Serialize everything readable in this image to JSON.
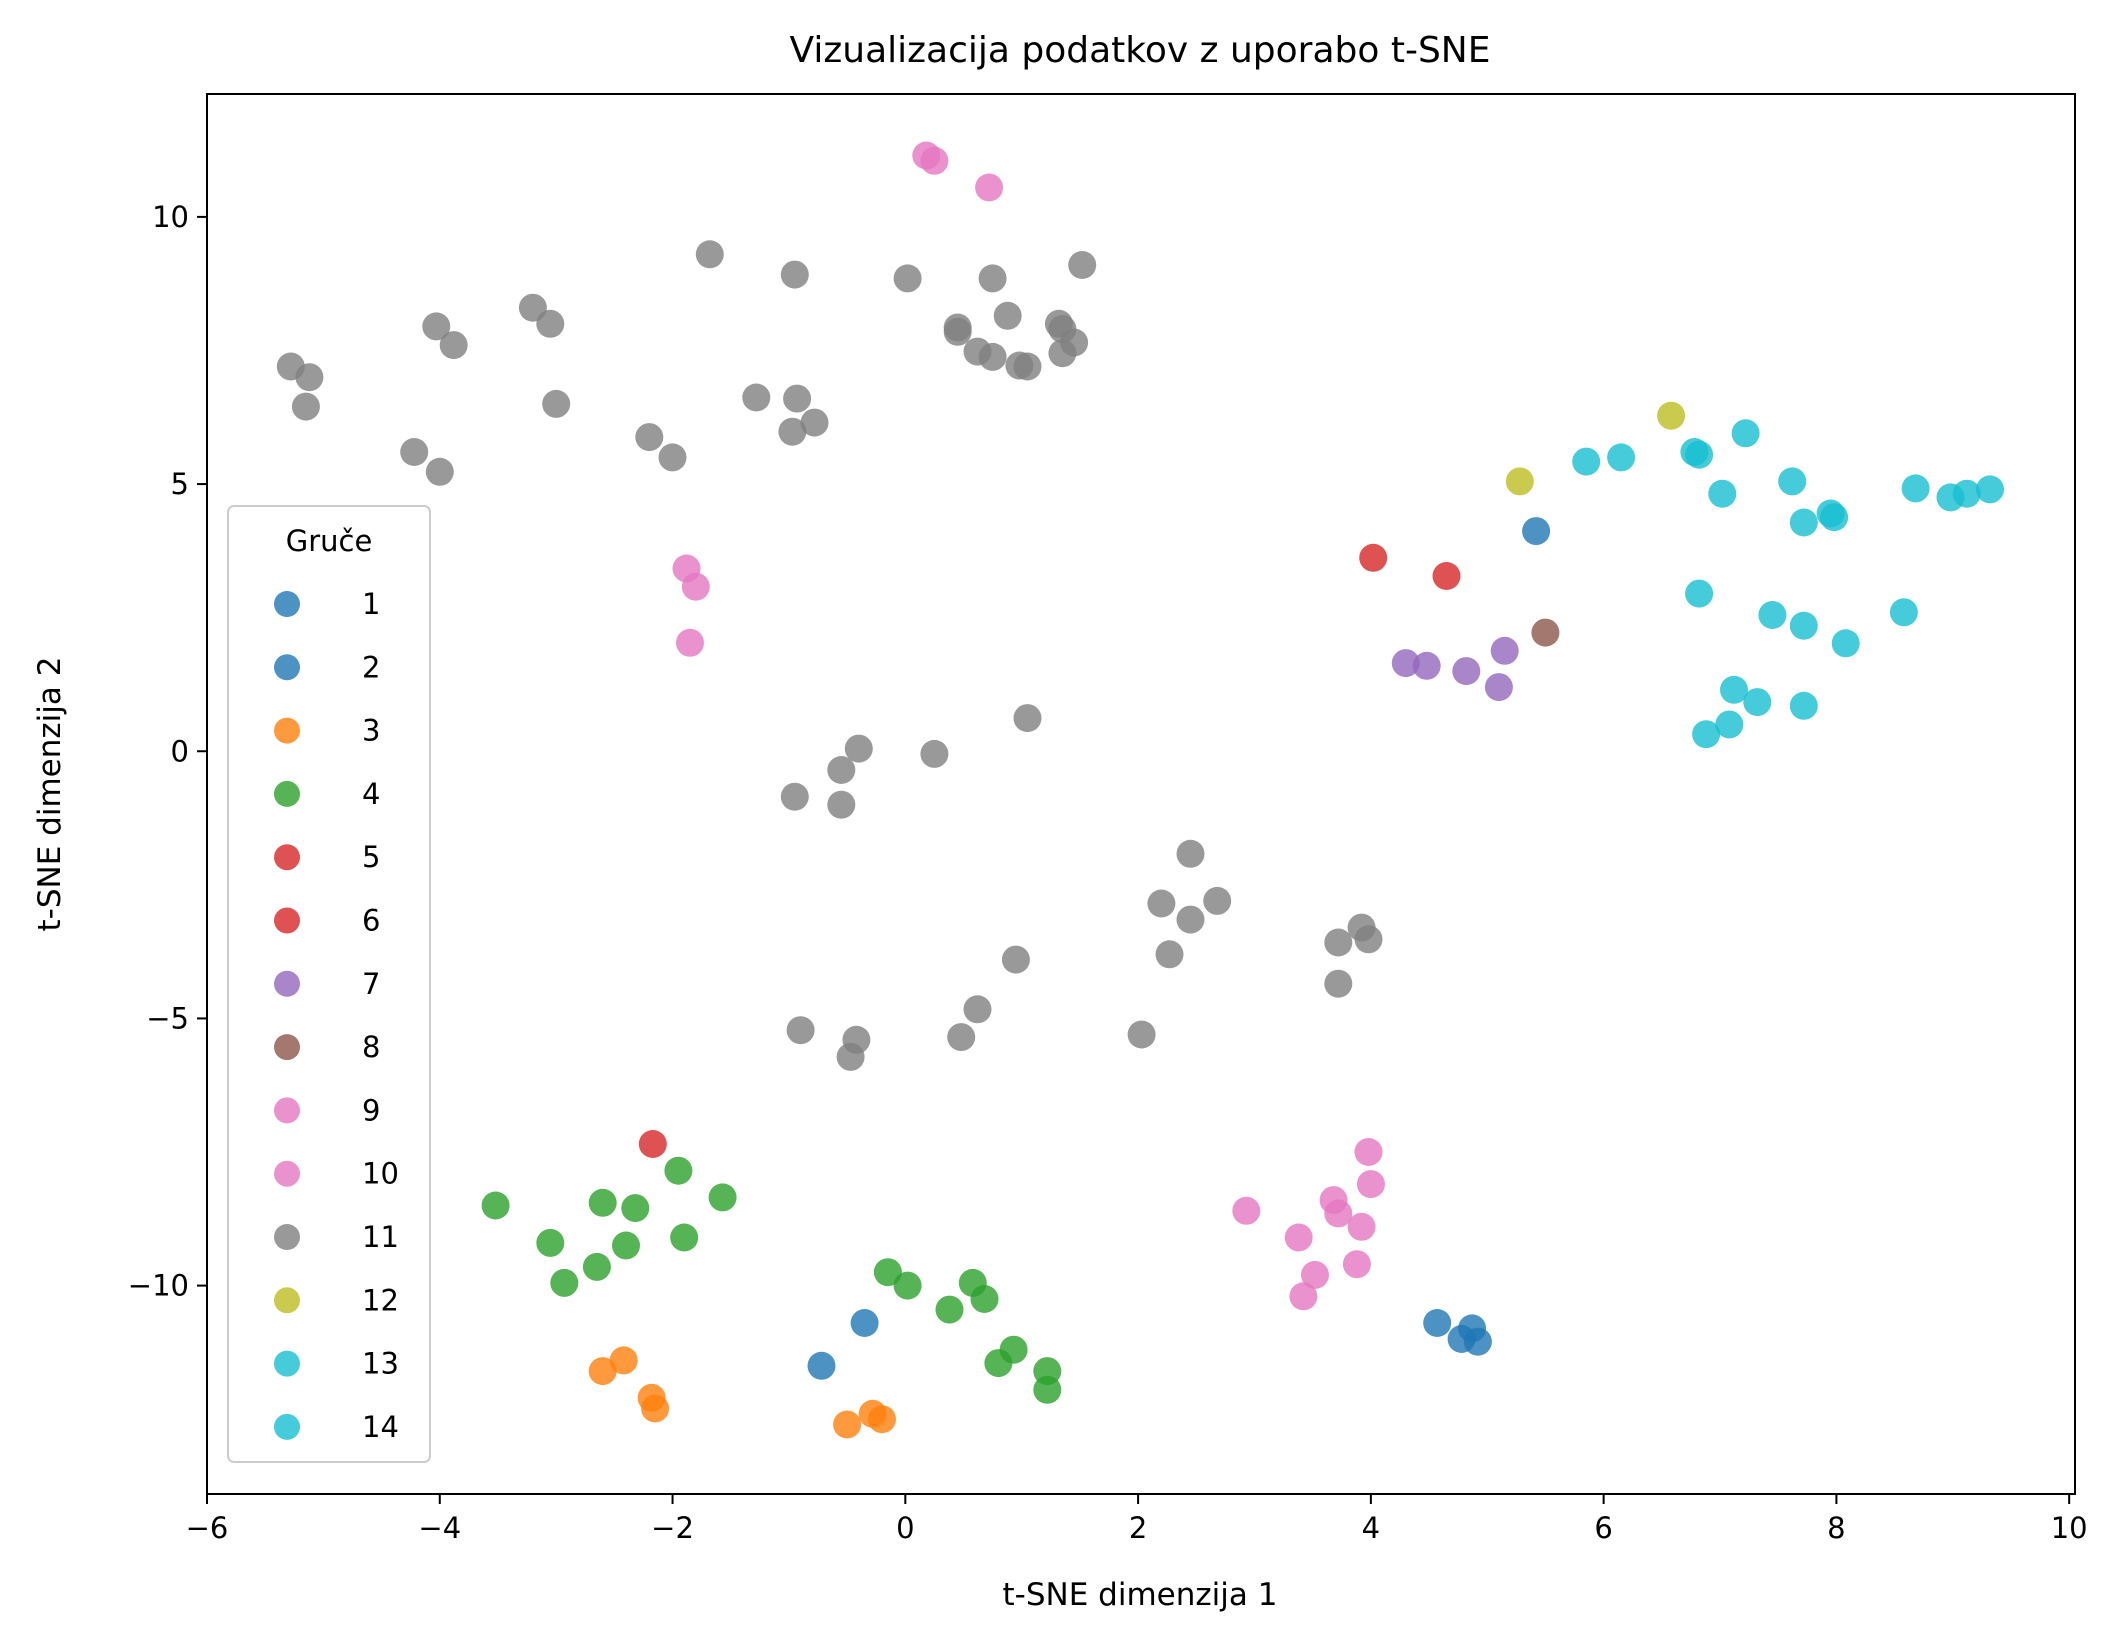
{
  "chart_data": {
    "type": "scatter",
    "title": "Vizualizacija podatkov z uporabo t-SNE",
    "xlabel": "t-SNE dimenzija 1",
    "ylabel": "t-SNE dimenzija 2",
    "xlim": [
      -6,
      10.05
    ],
    "ylim": [
      -13.9,
      12.3
    ],
    "xticks": [
      -6,
      -4,
      -2,
      0,
      2,
      4,
      6,
      8,
      10
    ],
    "xtick_labels": [
      "−6",
      "−4",
      "−2",
      "0",
      "2",
      "4",
      "6",
      "8",
      "10"
    ],
    "yticks": [
      -10,
      -5,
      0,
      5,
      10
    ],
    "ytick_labels": [
      "−10",
      "−5",
      "0",
      "5",
      "10"
    ],
    "grid": false,
    "legend": {
      "title": "Gruče",
      "placement": "lower-left"
    },
    "series": [
      {
        "name": "1",
        "color": "#1f77b4",
        "points": [
          [
            5.42,
            4.12
          ]
        ]
      },
      {
        "name": "2",
        "color": "#1f77b4",
        "points": [
          [
            -0.72,
            -11.5
          ],
          [
            -0.35,
            -10.7
          ],
          [
            4.57,
            -10.7
          ],
          [
            4.78,
            -11.0
          ],
          [
            4.87,
            -10.8
          ],
          [
            4.92,
            -11.05
          ]
        ]
      },
      {
        "name": "3",
        "color": "#ff7f0e",
        "points": [
          [
            -2.6,
            -11.6
          ],
          [
            -2.42,
            -11.4
          ],
          [
            -2.18,
            -12.1
          ],
          [
            -2.15,
            -12.3
          ],
          [
            -0.5,
            -12.6
          ],
          [
            -0.28,
            -12.4
          ],
          [
            -0.2,
            -12.5
          ]
        ]
      },
      {
        "name": "4",
        "color": "#2ca02c",
        "points": [
          [
            -3.52,
            -8.5
          ],
          [
            -3.05,
            -9.2
          ],
          [
            -2.93,
            -9.95
          ],
          [
            -2.6,
            -8.45
          ],
          [
            -2.65,
            -9.65
          ],
          [
            -2.4,
            -9.25
          ],
          [
            -2.32,
            -8.55
          ],
          [
            -1.95,
            -7.85
          ],
          [
            -1.9,
            -9.1
          ],
          [
            -1.57,
            -8.35
          ],
          [
            -0.15,
            -9.75
          ],
          [
            0.02,
            -10.0
          ],
          [
            0.38,
            -10.45
          ],
          [
            0.58,
            -9.95
          ],
          [
            0.68,
            -10.25
          ],
          [
            0.8,
            -11.45
          ],
          [
            0.93,
            -11.2
          ],
          [
            1.22,
            -11.6
          ],
          [
            1.22,
            -11.95
          ]
        ]
      },
      {
        "name": "5",
        "color": "#d62728",
        "points": [
          [
            -2.17,
            -7.35
          ]
        ]
      },
      {
        "name": "6",
        "color": "#d62728",
        "points": [
          [
            4.02,
            3.62
          ],
          [
            4.65,
            3.28
          ]
        ]
      },
      {
        "name": "7",
        "color": "#9467bd",
        "points": [
          [
            4.3,
            1.65
          ],
          [
            4.48,
            1.6
          ],
          [
            4.82,
            1.5
          ],
          [
            5.1,
            1.2
          ],
          [
            5.15,
            1.88
          ]
        ]
      },
      {
        "name": "8",
        "color": "#8c564b",
        "points": [
          [
            5.5,
            2.22
          ]
        ]
      },
      {
        "name": "9",
        "color": "#e377c2",
        "points": [
          [
            0.18,
            11.15
          ],
          [
            0.25,
            11.05
          ],
          [
            0.72,
            10.55
          ],
          [
            -1.88,
            3.42
          ],
          [
            -1.8,
            3.08
          ],
          [
            -1.85,
            2.03
          ]
        ]
      },
      {
        "name": "10",
        "color": "#e377c2",
        "points": [
          [
            2.93,
            -8.6
          ],
          [
            3.38,
            -9.1
          ],
          [
            3.42,
            -10.2
          ],
          [
            3.52,
            -9.8
          ],
          [
            3.68,
            -8.4
          ],
          [
            3.72,
            -8.65
          ],
          [
            3.88,
            -9.6
          ],
          [
            3.92,
            -8.9
          ],
          [
            3.98,
            -7.5
          ],
          [
            4.0,
            -8.1
          ]
        ]
      },
      {
        "name": "11",
        "color": "#7f7f7f",
        "points": [
          [
            -5.28,
            7.2
          ],
          [
            -5.12,
            7.0
          ],
          [
            -5.15,
            6.45
          ],
          [
            -4.03,
            7.95
          ],
          [
            -3.88,
            7.6
          ],
          [
            -4.22,
            5.6
          ],
          [
            -4.0,
            5.23
          ],
          [
            -3.2,
            8.3
          ],
          [
            -3.05,
            8.0
          ],
          [
            -3.0,
            6.5
          ],
          [
            -2.2,
            5.88
          ],
          [
            -2.0,
            5.5
          ],
          [
            -1.68,
            9.3
          ],
          [
            -1.28,
            6.62
          ],
          [
            -0.95,
            8.92
          ],
          [
            -0.93,
            6.6
          ],
          [
            -0.97,
            5.98
          ],
          [
            -0.78,
            6.15
          ],
          [
            0.02,
            8.85
          ],
          [
            0.45,
            7.93
          ],
          [
            0.45,
            7.85
          ],
          [
            0.62,
            7.48
          ],
          [
            0.75,
            7.38
          ],
          [
            0.75,
            8.85
          ],
          [
            0.88,
            8.15
          ],
          [
            0.98,
            7.22
          ],
          [
            1.05,
            7.2
          ],
          [
            1.32,
            8.0
          ],
          [
            1.35,
            7.9
          ],
          [
            1.35,
            7.45
          ],
          [
            1.45,
            7.65
          ],
          [
            1.52,
            9.1
          ],
          [
            -0.95,
            -0.85
          ],
          [
            -0.55,
            -0.35
          ],
          [
            -0.55,
            -1.0
          ],
          [
            -0.4,
            0.05
          ],
          [
            0.25,
            -0.05
          ],
          [
            1.05,
            0.62
          ],
          [
            2.45,
            -1.92
          ],
          [
            2.2,
            -2.85
          ],
          [
            2.45,
            -3.15
          ],
          [
            2.68,
            -2.8
          ],
          [
            2.27,
            -3.8
          ],
          [
            0.95,
            -3.9
          ],
          [
            0.62,
            -4.83
          ],
          [
            0.48,
            -5.35
          ],
          [
            -0.9,
            -5.22
          ],
          [
            -0.42,
            -5.4
          ],
          [
            -0.47,
            -5.72
          ],
          [
            2.03,
            -5.3
          ],
          [
            3.72,
            -3.58
          ],
          [
            3.92,
            -3.3
          ],
          [
            3.98,
            -3.52
          ],
          [
            3.72,
            -4.35
          ]
        ]
      },
      {
        "name": "12",
        "color": "#bcbd22",
        "points": [
          [
            5.28,
            5.05
          ],
          [
            6.58,
            6.28
          ]
        ]
      },
      {
        "name": "13",
        "color": "#17becf",
        "points": [
          [
            5.85,
            5.42
          ],
          [
            6.15,
            5.5
          ],
          [
            6.78,
            5.6
          ],
          [
            6.82,
            5.55
          ],
          [
            7.22,
            5.95
          ],
          [
            7.02,
            4.82
          ],
          [
            7.62,
            5.05
          ],
          [
            7.72,
            4.28
          ],
          [
            7.95,
            4.45
          ],
          [
            7.98,
            4.38
          ],
          [
            8.68,
            4.92
          ],
          [
            8.98,
            4.75
          ],
          [
            9.12,
            4.82
          ],
          [
            9.32,
            4.9
          ],
          [
            6.82,
            2.95
          ],
          [
            7.45,
            2.55
          ],
          [
            7.72,
            2.35
          ],
          [
            8.08,
            2.02
          ],
          [
            8.58,
            2.6
          ],
          [
            7.12,
            1.15
          ],
          [
            7.32,
            0.92
          ],
          [
            7.72,
            0.85
          ],
          [
            6.88,
            0.32
          ],
          [
            7.08,
            0.5
          ]
        ]
      },
      {
        "name": "14",
        "color": "#17becf",
        "points": []
      }
    ]
  }
}
